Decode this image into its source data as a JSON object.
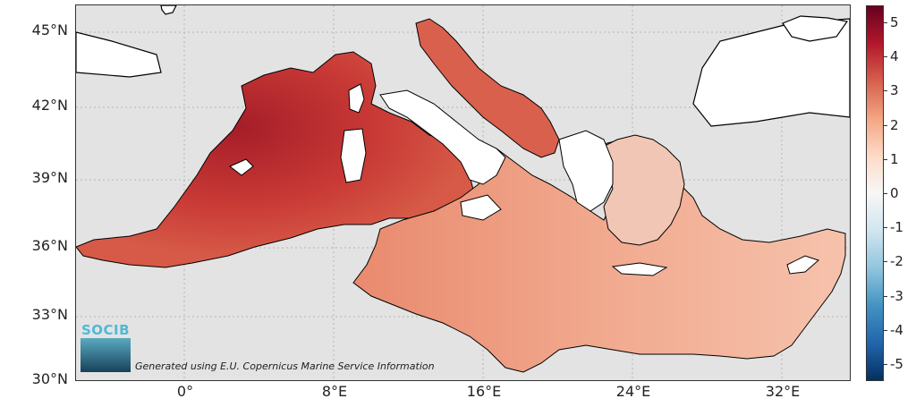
{
  "map": {
    "lat_labels": [
      "45°N",
      "42°N",
      "39°N",
      "36°N",
      "33°N",
      "30°N"
    ],
    "lon_labels": [
      "0°",
      "8°E",
      "16°E",
      "24°E",
      "32°E"
    ],
    "colors": {
      "sea_bg": "#e3e3e3",
      "land": "#ffffff",
      "coast": "#000000"
    }
  },
  "colorbar": {
    "ticks": [
      "5",
      "4",
      "3",
      "2",
      "1",
      "0",
      "-1",
      "-2",
      "-3",
      "-4",
      "-5"
    ],
    "range": [
      -5.5,
      5.5
    ],
    "colors": [
      "#053061",
      "#2166ac",
      "#4393c3",
      "#92c5de",
      "#d1e5f0",
      "#f7f7f7",
      "#fddbc7",
      "#f4a582",
      "#d6604d",
      "#b2182b",
      "#67001f"
    ]
  },
  "logo": {
    "text": "SOCIB"
  },
  "credit": {
    "text": "Generated using E.U. Copernicus Marine Service Information"
  }
}
